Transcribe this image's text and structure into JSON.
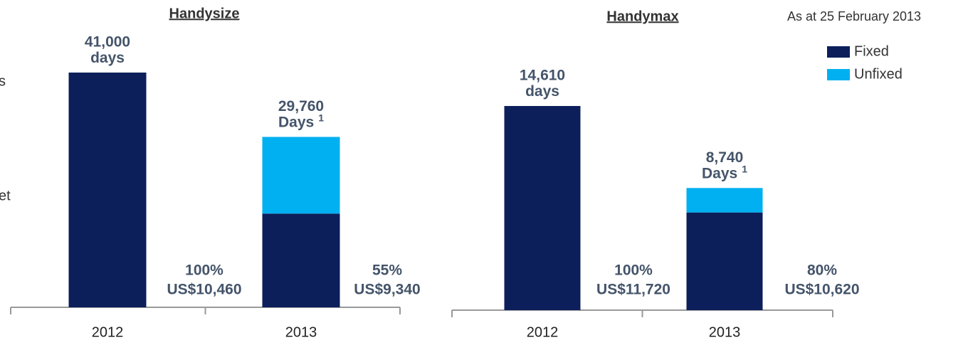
{
  "note": "As at 25 February 2013",
  "fragments": [
    "s",
    "et"
  ],
  "chart_data": [
    {
      "type": "bar",
      "stacked": true,
      "title": "Handysize",
      "categories": [
        "2012",
        "2013"
      ],
      "series": [
        {
          "name": "Fixed",
          "color": "#0c1f5b",
          "values": [
            41000,
            16370
          ]
        },
        {
          "name": "Unfixed",
          "color": "#00b0f0",
          "values": [
            0,
            13390
          ]
        }
      ],
      "totals": [
        41000,
        29760
      ],
      "total_labels": [
        "41,000",
        "29,760"
      ],
      "total_units": [
        "days",
        "Days"
      ],
      "footnotes": [
        null,
        "1"
      ],
      "percent_fixed": [
        100,
        55
      ],
      "percent_labels": [
        "100%",
        "55%"
      ],
      "rates": [
        10460,
        9340
      ],
      "rate_labels": [
        "US$10,460",
        "US$9,340"
      ]
    },
    {
      "type": "bar",
      "stacked": true,
      "title": "Handymax",
      "categories": [
        "2012",
        "2013"
      ],
      "series": [
        {
          "name": "Fixed",
          "color": "#0c1f5b",
          "values": [
            14610,
            6990
          ]
        },
        {
          "name": "Unfixed",
          "color": "#00b0f0",
          "values": [
            0,
            1750
          ]
        }
      ],
      "totals": [
        14610,
        8740
      ],
      "total_labels": [
        "14,610",
        "8,740"
      ],
      "total_units": [
        "days",
        "Days"
      ],
      "footnotes": [
        null,
        "1"
      ],
      "percent_fixed": [
        100,
        80
      ],
      "percent_labels": [
        "100%",
        "80%"
      ],
      "rates": [
        11720,
        10620
      ],
      "rate_labels": [
        "US$11,720",
        "US$10,620"
      ]
    }
  ]
}
